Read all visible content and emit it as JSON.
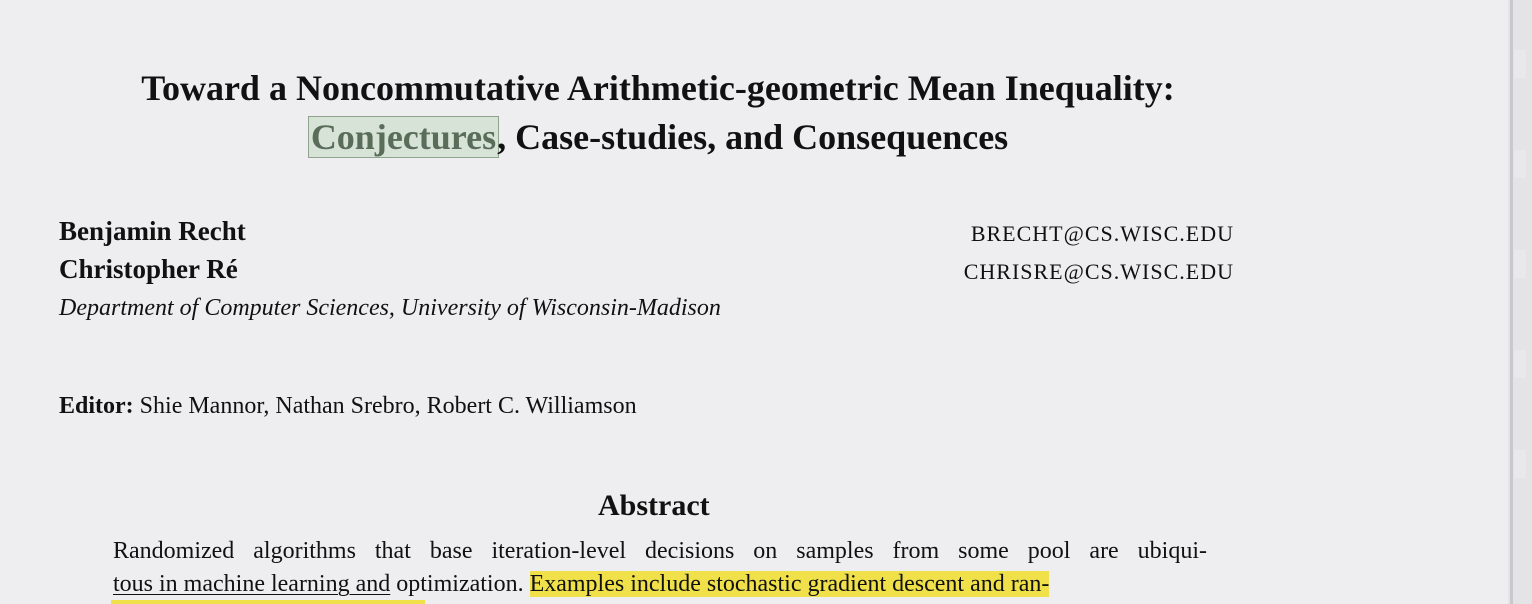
{
  "paper": {
    "title_line1": "Toward a Noncommutative Arithmetic-geometric Mean Inequality:",
    "title_highlight": "Conjectures",
    "title_line2_rest": ", Case-studies, and Consequences",
    "authors": [
      {
        "name": "Benjamin Recht",
        "email": "BRECHT@CS.WISC.EDU"
      },
      {
        "name": "Christopher Ré",
        "email": "CHRISRE@CS.WISC.EDU"
      }
    ],
    "affiliation": "Department of Computer Sciences, University of Wisconsin-Madison",
    "editor_label": "Editor:",
    "editor_names": " Shie Mannor, Nathan Srebro, Robert C. Williamson",
    "abstract_heading": "Abstract",
    "abstract_line1": "Randomized algorithms that base iteration-level decisions on samples from some pool are ubiqui-",
    "abstract_line2_a": "tous in machine learning and",
    "abstract_line2_b": " optimization. ",
    "abstract_line2_c": "Examples include stochastic gradient descent and ran-"
  },
  "colors": {
    "highlight_yellow": "#f0e14a",
    "highlight_green": "#d6e3d6",
    "page_background": "#eeedf0"
  }
}
